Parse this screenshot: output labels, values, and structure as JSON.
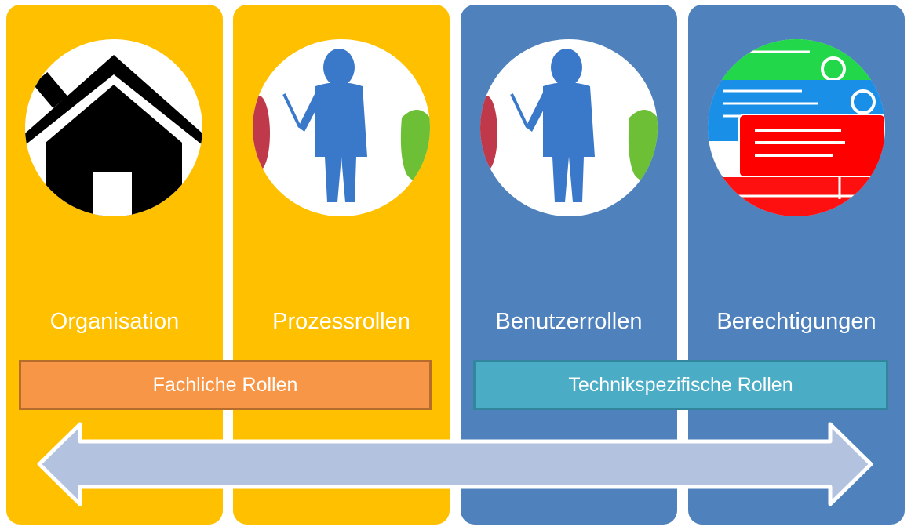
{
  "columns": [
    {
      "label": "Organisation",
      "icon": "house-icon",
      "color": "#FFC000"
    },
    {
      "label": "Prozessrollen",
      "icon": "person-presenting-icon",
      "color": "#FFC000"
    },
    {
      "label": "Benutzerrollen",
      "icon": "person-presenting-icon",
      "color": "#4F81BD"
    },
    {
      "label": "Berechtigungen",
      "icon": "stacked-cards-icon",
      "color": "#4F81BD"
    }
  ],
  "bands": {
    "fachlich": "Fachliche Rollen",
    "technisch": "Technikspezifische Rollen"
  },
  "arrow": {
    "icon": "double-arrow-icon",
    "color": "#B3C3DF"
  }
}
